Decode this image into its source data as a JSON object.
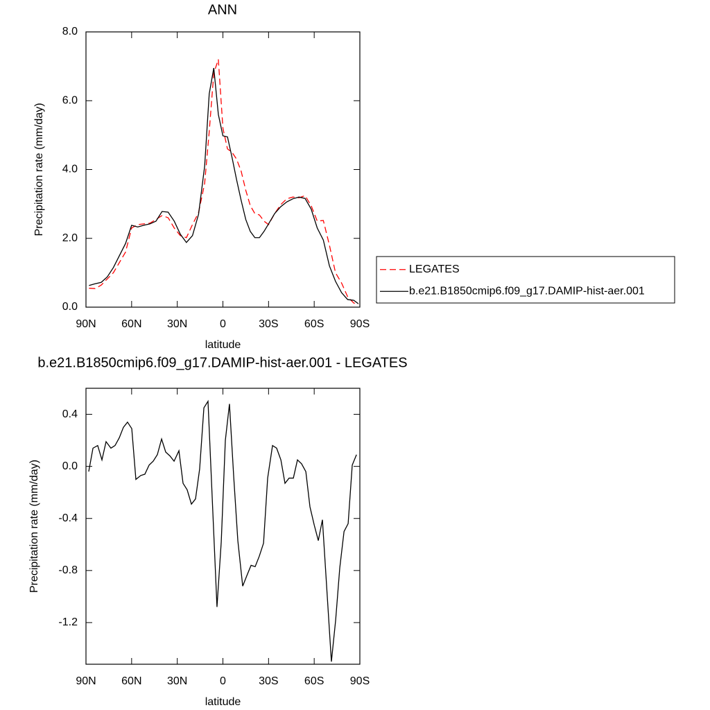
{
  "chart_data": [
    {
      "type": "line",
      "title": "ANN",
      "xlabel": "latitude",
      "ylabel": "Precipitation rate (mm/day)",
      "x": [
        88,
        84,
        80,
        76,
        72,
        68,
        64,
        60,
        56,
        52,
        48,
        44,
        40,
        36,
        32,
        28,
        24,
        20,
        16,
        12,
        9,
        6,
        3,
        0,
        -3,
        -6,
        -9,
        -12,
        -15,
        -18,
        -21,
        -24,
        -27,
        -30,
        -34,
        -38,
        -42,
        -46,
        -50,
        -54,
        -58,
        -62,
        -66,
        -70,
        -74,
        -78,
        -82,
        -86,
        -89
      ],
      "series": [
        {
          "name": "LEGATES",
          "color": "#ff0000",
          "dash": true,
          "values": [
            0.55,
            0.54,
            0.64,
            0.82,
            1.0,
            1.3,
            1.6,
            2.3,
            2.4,
            2.42,
            2.44,
            2.55,
            2.66,
            2.6,
            2.3,
            2.08,
            2.02,
            2.4,
            2.75,
            3.6,
            5.1,
            6.8,
            7.2,
            5.2,
            4.6,
            4.5,
            4.3,
            3.95,
            3.4,
            2.95,
            2.72,
            2.68,
            2.5,
            2.4,
            2.72,
            2.98,
            3.15,
            3.2,
            3.18,
            3.24,
            2.95,
            2.5,
            2.52,
            1.8,
            1.0,
            0.7,
            0.3,
            0.12,
            0.08
          ]
        },
        {
          "name": "b.e21.B1850cmip6.f09_g17.DAMIP-hist-aer.001",
          "color": "#000000",
          "dash": false,
          "values": [
            0.63,
            0.68,
            0.72,
            0.88,
            1.15,
            1.5,
            1.85,
            2.38,
            2.33,
            2.38,
            2.42,
            2.5,
            2.78,
            2.76,
            2.5,
            2.12,
            1.88,
            2.08,
            2.7,
            4.1,
            6.2,
            6.95,
            5.6,
            4.98,
            4.95,
            4.35,
            3.7,
            3.1,
            2.55,
            2.2,
            2.02,
            2.02,
            2.2,
            2.42,
            2.72,
            2.92,
            3.06,
            3.15,
            3.2,
            3.16,
            2.85,
            2.3,
            1.95,
            1.2,
            0.75,
            0.42,
            0.22,
            0.2,
            0.1
          ]
        }
      ],
      "xlim": [
        90,
        -90
      ],
      "xticks": [
        {
          "value": 90,
          "label": "90N"
        },
        {
          "value": 60,
          "label": "60N"
        },
        {
          "value": 30,
          "label": "30N"
        },
        0,
        {
          "value": -30,
          "label": "30S"
        },
        {
          "value": -60,
          "label": "60S"
        },
        {
          "value": -90,
          "label": "90S"
        }
      ],
      "ylim": [
        0,
        8
      ],
      "yticks": [
        {
          "value": 0,
          "label": "0.0"
        },
        {
          "value": 2,
          "label": "2.0"
        },
        {
          "value": 4,
          "label": "4.0"
        },
        {
          "value": 6,
          "label": "6.0"
        },
        {
          "value": 8,
          "label": "8.0"
        }
      ],
      "legend": "right"
    },
    {
      "type": "line",
      "title": "b.e21.B1850cmip6.f09_g17.DAMIP-hist-aer.001 - LEGATES",
      "xlabel": "latitude",
      "ylabel": "Precipitation rate (mm/day)",
      "x": [
        88.2,
        85.4,
        82.3,
        79.5,
        76.8,
        73.6,
        70.9,
        68.1,
        65.4,
        62.7,
        59.9,
        57.2,
        54.0,
        51.3,
        48.5,
        45.8,
        43.1,
        40.3,
        37.6,
        34.8,
        32.1,
        28.9,
        26.2,
        23.5,
        20.7,
        18.0,
        15.3,
        12.5,
        9.8,
        3.9,
        1.1,
        -1.6,
        -4.3,
        -7.1,
        -9.8,
        -13.0,
        -15.7,
        -18.5,
        -21.2,
        -23.9,
        -26.7,
        -29.4,
        -32.6,
        -35.3,
        -38.1,
        -40.8,
        -43.5,
        -46.3,
        -49.0,
        -51.7,
        -54.5,
        -57.2,
        -60.0,
        -62.7,
        -65.4,
        -71.3,
        -74.1,
        -76.8,
        -79.6,
        -82.3,
        -85.0,
        -87.8
      ],
      "values": [
        -0.04,
        0.14,
        0.16,
        0.05,
        0.19,
        0.14,
        0.16,
        0.22,
        0.3,
        0.34,
        0.29,
        -0.1,
        -0.07,
        -0.06,
        0.01,
        0.04,
        0.09,
        0.21,
        0.11,
        0.08,
        0.04,
        0.12,
        -0.13,
        -0.18,
        -0.29,
        -0.25,
        -0.02,
        0.45,
        0.5,
        -1.08,
        -0.58,
        0.2,
        0.48,
        -0.08,
        -0.57,
        -0.92,
        -0.84,
        -0.76,
        -0.77,
        -0.69,
        -0.59,
        -0.09,
        0.16,
        0.14,
        0.05,
        -0.13,
        -0.09,
        -0.09,
        0.05,
        0.02,
        -0.04,
        -0.31,
        -0.45,
        -0.57,
        -0.41,
        -1.5,
        -1.18,
        -0.78,
        -0.5,
        -0.44,
        0.01,
        0.09
      ],
      "color": "#000000",
      "xlim": [
        90,
        -90
      ],
      "xticks": [
        {
          "value": 90,
          "label": "90N"
        },
        {
          "value": 60,
          "label": "60N"
        },
        {
          "value": 30,
          "label": "30N"
        },
        0,
        {
          "value": -30,
          "label": "30S"
        },
        {
          "value": -60,
          "label": "60S"
        },
        {
          "value": -90,
          "label": "90S"
        }
      ],
      "ylim": [
        -1.52,
        0.6
      ],
      "yticks": [
        {
          "value": -1.2,
          "label": "-1.2"
        },
        {
          "value": -0.8,
          "label": "-0.8"
        },
        {
          "value": -0.4,
          "label": "-0.4"
        },
        {
          "value": 0,
          "label": "0.0"
        },
        {
          "value": 0.4,
          "label": "0.4"
        }
      ]
    }
  ]
}
